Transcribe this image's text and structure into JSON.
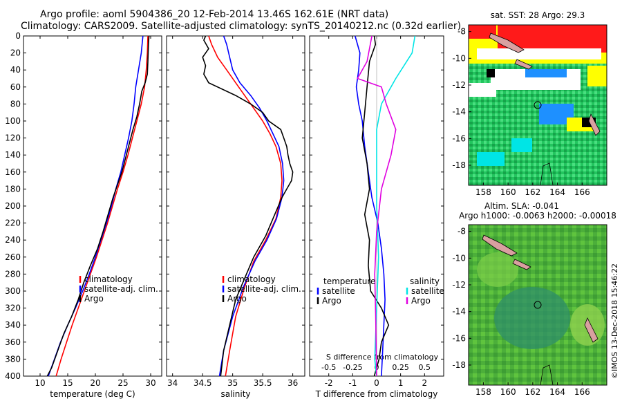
{
  "title": {
    "line1": "Argo profile: aoml 5904386_20 12-Feb-2014 13.46S 162.61E (NRT data)",
    "line2": "Climatology: CARS2009. Satellite-adjusted climatology: synTS_20140212.nc (0.32d earlier)"
  },
  "colors": {
    "climatology": "#ff0000",
    "satellite": "#0000ff",
    "argo": "#000000",
    "sat_salinity": "#00e5e5",
    "argo_salinity": "#e000e0"
  },
  "chart_data": [
    {
      "id": "temperature",
      "type": "line",
      "xlabel": "temperature (deg C)",
      "xlim": [
        7,
        32
      ],
      "ylim": [
        0,
        400
      ],
      "y_inverted": true,
      "xticks": [
        10,
        15,
        20,
        25,
        30
      ],
      "xtick_labels": [
        "10",
        "15",
        "20",
        "25",
        "30"
      ],
      "yticks": [
        0,
        20,
        40,
        60,
        80,
        100,
        120,
        140,
        160,
        180,
        200,
        220,
        240,
        260,
        280,
        300,
        320,
        340,
        360,
        380,
        400
      ],
      "legend": [
        "climatology",
        "satellite-adj. clim.",
        "Argo"
      ],
      "series": [
        {
          "name": "climatology",
          "color": "#ff0000",
          "points": [
            [
              29.5,
              0
            ],
            [
              29.4,
              20
            ],
            [
              29.2,
              40
            ],
            [
              28.9,
              60
            ],
            [
              28.3,
              80
            ],
            [
              27.5,
              100
            ],
            [
              26.7,
              120
            ],
            [
              25.9,
              140
            ],
            [
              25.0,
              160
            ],
            [
              24.0,
              180
            ],
            [
              23.1,
              200
            ],
            [
              22.2,
              220
            ],
            [
              21.2,
              240
            ],
            [
              20.2,
              260
            ],
            [
              19.1,
              280
            ],
            [
              18.0,
              300
            ],
            [
              16.9,
              320
            ],
            [
              15.8,
              340
            ],
            [
              14.8,
              360
            ],
            [
              13.8,
              380
            ],
            [
              12.9,
              400
            ]
          ]
        },
        {
          "name": "satellite-adj. clim.",
          "color": "#0000ff",
          "points": [
            [
              28.6,
              0
            ],
            [
              28.3,
              20
            ],
            [
              27.8,
              40
            ],
            [
              27.3,
              60
            ],
            [
              27.0,
              80
            ],
            [
              26.6,
              100
            ],
            [
              26.0,
              120
            ],
            [
              25.3,
              140
            ],
            [
              24.6,
              160
            ],
            [
              23.7,
              180
            ],
            [
              22.9,
              200
            ],
            [
              22.0,
              220
            ],
            [
              21.0,
              240
            ],
            [
              20.0,
              260
            ],
            [
              18.9,
              280
            ],
            [
              17.7,
              300
            ],
            [
              16.4,
              320
            ],
            [
              15.0,
              340
            ],
            [
              13.7,
              360
            ],
            [
              12.6,
              380
            ],
            [
              11.5,
              400
            ]
          ]
        },
        {
          "name": "Argo",
          "color": "#000000",
          "points": [
            [
              29.7,
              0
            ],
            [
              29.6,
              10
            ],
            [
              29.5,
              30
            ],
            [
              29.4,
              45
            ],
            [
              29.0,
              55
            ],
            [
              28.4,
              65
            ],
            [
              28.0,
              80
            ],
            [
              27.5,
              95
            ],
            [
              26.8,
              110
            ],
            [
              26.2,
              125
            ],
            [
              25.6,
              140
            ],
            [
              24.8,
              160
            ],
            [
              24.0,
              175
            ],
            [
              23.2,
              190
            ],
            [
              22.3,
              210
            ],
            [
              21.4,
              230
            ],
            [
              20.4,
              250
            ],
            [
              19.1,
              270
            ],
            [
              17.9,
              290
            ],
            [
              16.9,
              310
            ],
            [
              15.7,
              330
            ],
            [
              14.3,
              350
            ],
            [
              13.2,
              370
            ],
            [
              12.1,
              390
            ],
            [
              11.3,
              400
            ]
          ]
        }
      ]
    },
    {
      "id": "salinity",
      "type": "line",
      "xlabel": "salinity",
      "xlim": [
        33.9,
        36.2
      ],
      "ylim": [
        0,
        400
      ],
      "y_inverted": true,
      "xticks": [
        34,
        34.5,
        35,
        35.5,
        36
      ],
      "xtick_labels": [
        "34",
        "34.5",
        "35",
        "35.5",
        "36"
      ],
      "legend": [
        "climatology",
        "satellite-adj. clim.",
        "Argo"
      ],
      "series": [
        {
          "name": "climatology",
          "color": "#ff0000",
          "points": [
            [
              34.6,
              0
            ],
            [
              34.65,
              10
            ],
            [
              34.75,
              25
            ],
            [
              34.9,
              40
            ],
            [
              35.05,
              55
            ],
            [
              35.2,
              70
            ],
            [
              35.35,
              85
            ],
            [
              35.5,
              100
            ],
            [
              35.62,
              115
            ],
            [
              35.72,
              130
            ],
            [
              35.8,
              150
            ],
            [
              35.82,
              170
            ],
            [
              35.8,
              190
            ],
            [
              35.72,
              215
            ],
            [
              35.55,
              240
            ],
            [
              35.35,
              265
            ],
            [
              35.2,
              295
            ],
            [
              35.05,
              330
            ],
            [
              34.95,
              370
            ],
            [
              34.88,
              400
            ]
          ]
        },
        {
          "name": "satellite-adj. clim.",
          "color": "#0000ff",
          "points": [
            [
              34.85,
              0
            ],
            [
              34.9,
              10
            ],
            [
              34.95,
              25
            ],
            [
              35.0,
              40
            ],
            [
              35.12,
              55
            ],
            [
              35.3,
              70
            ],
            [
              35.45,
              85
            ],
            [
              35.57,
              100
            ],
            [
              35.67,
              115
            ],
            [
              35.77,
              130
            ],
            [
              35.83,
              150
            ],
            [
              35.85,
              170
            ],
            [
              35.82,
              190
            ],
            [
              35.73,
              215
            ],
            [
              35.57,
              240
            ],
            [
              35.37,
              265
            ],
            [
              35.18,
              295
            ],
            [
              35.0,
              330
            ],
            [
              34.85,
              370
            ],
            [
              34.78,
              400
            ]
          ]
        },
        {
          "name": "Argo",
          "color": "#000000",
          "points": [
            [
              34.55,
              0
            ],
            [
              34.52,
              5
            ],
            [
              34.6,
              15
            ],
            [
              34.5,
              25
            ],
            [
              34.55,
              35
            ],
            [
              34.52,
              45
            ],
            [
              34.6,
              55
            ],
            [
              35.05,
              70
            ],
            [
              35.3,
              80
            ],
            [
              35.5,
              90
            ],
            [
              35.6,
              100
            ],
            [
              35.8,
              110
            ],
            [
              35.85,
              120
            ],
            [
              35.9,
              130
            ],
            [
              35.92,
              140
            ],
            [
              35.95,
              150
            ],
            [
              36.0,
              160
            ],
            [
              35.98,
              170
            ],
            [
              35.9,
              180
            ],
            [
              35.82,
              190
            ],
            [
              35.7,
              210
            ],
            [
              35.55,
              235
            ],
            [
              35.35,
              260
            ],
            [
              35.2,
              285
            ],
            [
              35.05,
              310
            ],
            [
              34.95,
              340
            ],
            [
              34.85,
              370
            ],
            [
              34.8,
              400
            ]
          ]
        }
      ]
    },
    {
      "id": "difference",
      "type": "line",
      "xlabel": "T difference from climatology",
      "x2label": "S difference from climatology",
      "xlim": [
        -2.8,
        2.8
      ],
      "ylim": [
        0,
        400
      ],
      "y_inverted": true,
      "xticks": [
        -2,
        -1,
        0,
        1,
        2
      ],
      "xtick_labels": [
        "-2",
        "-1",
        "0",
        "1",
        "2"
      ],
      "x2ticks": [
        -0.5,
        -0.25,
        0,
        0.25,
        0.5
      ],
      "x2tick_labels": [
        "-0.5",
        "-0.25",
        "0",
        "0.25",
        "0.5"
      ],
      "x2lim": [
        -0.7,
        0.7
      ],
      "legend_groups": {
        "temperature": [
          "satellite",
          "Argo"
        ],
        "salinity": [
          "satellite",
          "Argo"
        ]
      },
      "series": [
        {
          "name": "T satellite",
          "color": "#0000ff",
          "points": [
            [
              -0.9,
              0
            ],
            [
              -0.7,
              20
            ],
            [
              -0.75,
              40
            ],
            [
              -0.85,
              60
            ],
            [
              -0.75,
              80
            ],
            [
              -0.6,
              100
            ],
            [
              -0.5,
              130
            ],
            [
              -0.35,
              160
            ],
            [
              -0.2,
              190
            ],
            [
              0.05,
              220
            ],
            [
              0.2,
              250
            ],
            [
              0.3,
              280
            ],
            [
              0.35,
              310
            ],
            [
              0.3,
              340
            ],
            [
              0.25,
              370
            ],
            [
              0.2,
              400
            ]
          ]
        },
        {
          "name": "T Argo",
          "color": "#000000",
          "points": [
            [
              -0.1,
              0
            ],
            [
              -0.05,
              10
            ],
            [
              -0.3,
              30
            ],
            [
              -0.4,
              60
            ],
            [
              -0.5,
              90
            ],
            [
              -0.6,
              120
            ],
            [
              -0.4,
              150
            ],
            [
              -0.3,
              180
            ],
            [
              -0.5,
              210
            ],
            [
              -0.3,
              240
            ],
            [
              -0.35,
              270
            ],
            [
              -0.25,
              300
            ],
            [
              0.2,
              320
            ],
            [
              0.5,
              340
            ],
            [
              0.2,
              360
            ],
            [
              0.1,
              380
            ],
            [
              -0.1,
              400
            ]
          ]
        },
        {
          "name": "S satellite",
          "color": "#00e5e5",
          "points": [
            [
              0.4,
              0
            ],
            [
              0.37,
              20
            ],
            [
              0.2,
              50
            ],
            [
              0.05,
              80
            ],
            [
              0.0,
              110
            ],
            [
              0.0,
              150
            ],
            [
              0.0,
              200
            ],
            [
              0.02,
              260
            ],
            [
              0.0,
              320
            ],
            [
              -0.02,
              380
            ],
            [
              0.0,
              400
            ]
          ]
        },
        {
          "name": "S Argo",
          "color": "#e000e0",
          "points": [
            [
              -0.05,
              0
            ],
            [
              -0.1,
              30
            ],
            [
              -0.2,
              50
            ],
            [
              0.05,
              60
            ],
            [
              0.1,
              80
            ],
            [
              0.2,
              110
            ],
            [
              0.15,
              140
            ],
            [
              0.05,
              180
            ],
            [
              0.0,
              230
            ],
            [
              -0.02,
              280
            ],
            [
              -0.01,
              330
            ],
            [
              0.0,
              400
            ]
          ]
        }
      ]
    }
  ],
  "maps": {
    "sst": {
      "title": "sat. SST: 28 Argo: 29.3",
      "xticks": [
        "158",
        "160",
        "162",
        "164",
        "166"
      ],
      "yticks": [
        "-8",
        "-10",
        "-12",
        "-14",
        "-16",
        "-18"
      ]
    },
    "sla": {
      "title1": "Altim. SLA: -0.041",
      "title2": "Argo h1000: -0.0063 h2000: -0.00018",
      "xticks": [
        "158",
        "160",
        "162",
        "164",
        "166"
      ],
      "yticks": [
        "-8",
        "-10",
        "-12",
        "-14",
        "-16",
        "-18"
      ]
    }
  },
  "credit": "©IMOS 13-Dec-2018 15:46:22"
}
